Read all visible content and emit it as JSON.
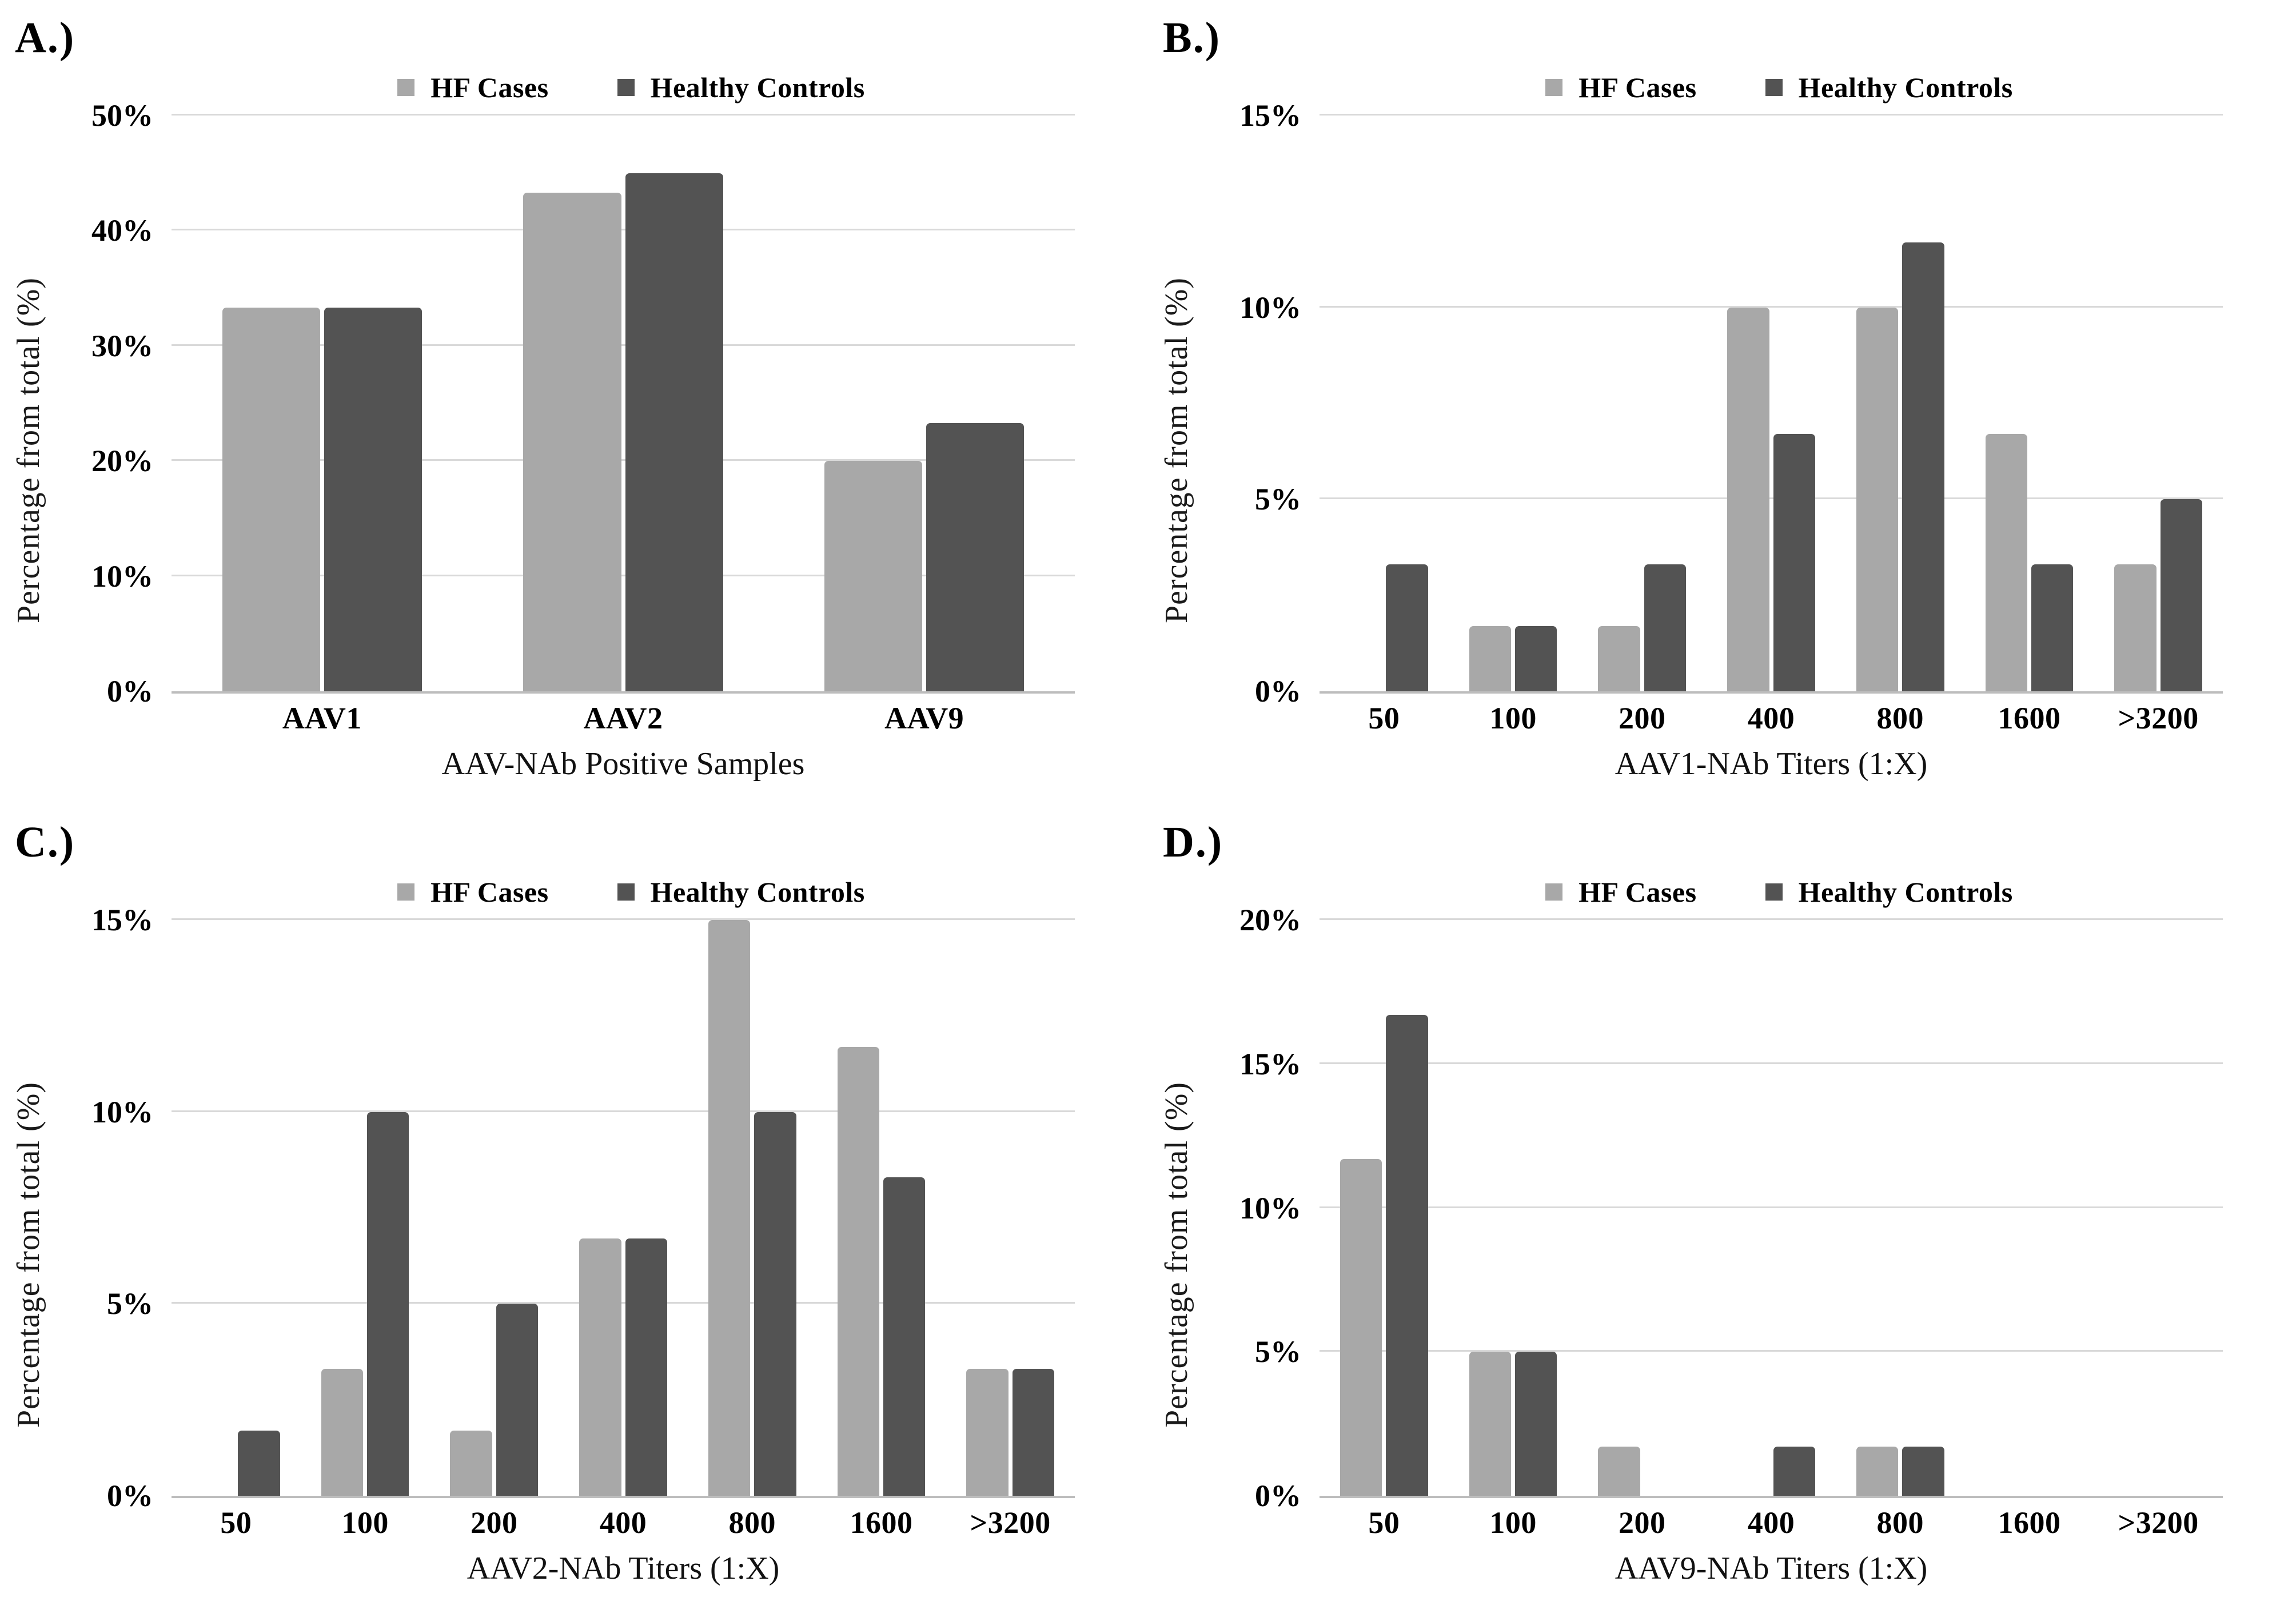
{
  "legend": {
    "items": [
      {
        "label": "HF Cases",
        "color": "#a8a8a8"
      },
      {
        "label": "Healthy Controls",
        "color": "#535353"
      }
    ]
  },
  "chart_data": [
    {
      "type": "bar",
      "panel_label": "A.)",
      "title": "",
      "xlabel": "AAV-NAb Positive Samples",
      "ylabel": "Percentage from total (%)",
      "categories": [
        "AAV1",
        "AAV2",
        "AAV9"
      ],
      "series": [
        {
          "name": "HF Cases",
          "values": [
            33.3,
            43.3,
            20.0
          ]
        },
        {
          "name": "Healthy Controls",
          "values": [
            33.3,
            45.0,
            23.3
          ]
        }
      ],
      "ylim": [
        0,
        50
      ],
      "yticks": [
        0,
        10,
        20,
        30,
        40,
        50
      ],
      "ytick_labels": [
        "0%",
        "10%",
        "20%",
        "30%",
        "40%",
        "50%"
      ],
      "grid": true,
      "legend_position": "top"
    },
    {
      "type": "bar",
      "panel_label": "B.)",
      "title": "",
      "xlabel": "AAV1-NAb Titers (1:X)",
      "ylabel": "Percentage from total (%)",
      "categories": [
        "50",
        "100",
        "200",
        "400",
        "800",
        "1600",
        ">3200"
      ],
      "series": [
        {
          "name": "HF Cases",
          "values": [
            0,
            1.7,
            1.7,
            10.0,
            10.0,
            6.7,
            3.3
          ]
        },
        {
          "name": "Healthy Controls",
          "values": [
            3.3,
            1.7,
            3.3,
            6.7,
            11.7,
            3.3,
            5.0
          ]
        }
      ],
      "ylim": [
        0,
        15
      ],
      "yticks": [
        0,
        5,
        10,
        15
      ],
      "ytick_labels": [
        "0%",
        "5%",
        "10%",
        "15%"
      ],
      "grid": true,
      "legend_position": "top"
    },
    {
      "type": "bar",
      "panel_label": "C.)",
      "title": "",
      "xlabel": "AAV2-NAb Titers (1:X)",
      "ylabel": "Percentage from total (%)",
      "categories": [
        "50",
        "100",
        "200",
        "400",
        "800",
        "1600",
        ">3200"
      ],
      "series": [
        {
          "name": "HF Cases",
          "values": [
            0,
            3.3,
            1.7,
            6.7,
            15.0,
            11.7,
            3.3
          ]
        },
        {
          "name": "Healthy Controls",
          "values": [
            1.7,
            10.0,
            5.0,
            6.7,
            10.0,
            8.3,
            3.3
          ]
        }
      ],
      "ylim": [
        0,
        15
      ],
      "yticks": [
        0,
        5,
        10,
        15
      ],
      "ytick_labels": [
        "0%",
        "5%",
        "10%",
        "15%"
      ],
      "grid": true,
      "legend_position": "top"
    },
    {
      "type": "bar",
      "panel_label": "D.)",
      "title": "",
      "xlabel": "AAV9-NAb Titers (1:X)",
      "ylabel": "Percentage from total (%)",
      "categories": [
        "50",
        "100",
        "200",
        "400",
        "800",
        "1600",
        ">3200"
      ],
      "series": [
        {
          "name": "HF Cases",
          "values": [
            11.7,
            5.0,
            1.7,
            0,
            1.7,
            0,
            0
          ]
        },
        {
          "name": "Healthy Controls",
          "values": [
            16.7,
            5.0,
            0,
            1.7,
            1.7,
            0,
            0
          ]
        }
      ],
      "ylim": [
        0,
        20
      ],
      "yticks": [
        0,
        5,
        10,
        15,
        20
      ],
      "ytick_labels": [
        "0%",
        "5%",
        "10%",
        "15%",
        "20%"
      ],
      "grid": true,
      "legend_position": "top"
    }
  ]
}
